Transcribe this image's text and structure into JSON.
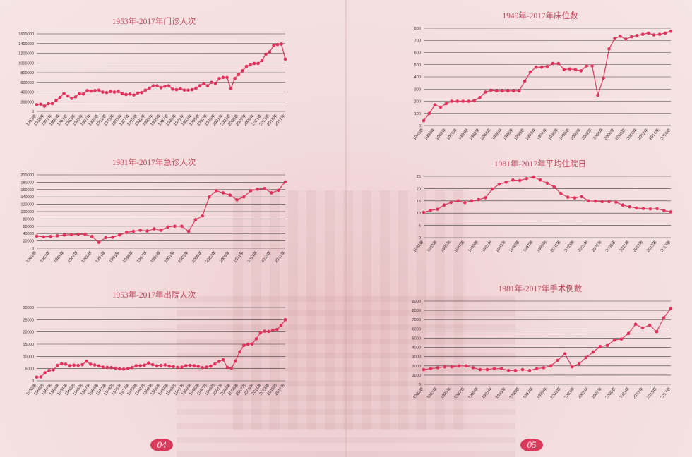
{
  "pages": {
    "left": "04",
    "right": "05"
  },
  "chart_data": [
    {
      "id": "outpatient",
      "type": "line",
      "title": "1953年-2017年门诊人次",
      "ylim": [
        0,
        1600000
      ],
      "yticks": [
        0,
        200000,
        400000,
        600000,
        800000,
        1000000,
        1200000,
        1400000,
        1600000
      ],
      "x_labels": [
        "1953年",
        "1955年",
        "1957年",
        "1959年",
        "1961年",
        "1963年",
        "1965年",
        "1967年",
        "1969年",
        "1971年",
        "1973年",
        "1975年",
        "1977年",
        "1979年",
        "1981年",
        "1983年",
        "1985年",
        "1987年",
        "1989年",
        "1991年",
        "1993年",
        "1995年",
        "1997年",
        "1999年",
        "2001年",
        "2003年",
        "2005年",
        "2007年",
        "2009年",
        "2011年",
        "2013年",
        "2015年",
        "2017年"
      ],
      "x_start": 1953,
      "x_end": 2017,
      "series": [
        {
          "values": [
            140000,
            150000,
            110000,
            160000,
            160000,
            230000,
            290000,
            370000,
            320000,
            270000,
            300000,
            370000,
            360000,
            430000,
            420000,
            430000,
            440000,
            400000,
            390000,
            410000,
            400000,
            410000,
            370000,
            350000,
            360000,
            340000,
            380000,
            390000,
            440000,
            480000,
            530000,
            530000,
            490000,
            520000,
            530000,
            460000,
            450000,
            470000,
            440000,
            440000,
            450000,
            480000,
            530000,
            580000,
            530000,
            600000,
            580000,
            680000,
            700000,
            700000,
            470000,
            680000,
            760000,
            840000,
            930000,
            960000,
            990000,
            990000,
            1050000,
            1180000,
            1230000,
            1360000,
            1380000,
            1390000,
            1080000
          ]
        }
      ]
    },
    {
      "id": "emergency",
      "type": "line",
      "title": "1981年-2017年急诊人次",
      "ylim": [
        0,
        200000
      ],
      "yticks": [
        0,
        20000,
        40000,
        60000,
        80000,
        100000,
        120000,
        140000,
        160000,
        180000,
        200000
      ],
      "x_labels": [
        "1981年",
        "1983年",
        "1985年",
        "1987年",
        "1989年",
        "1991年",
        "1993年",
        "1995年",
        "1997年",
        "1999年",
        "2001年",
        "2003年",
        "2005年",
        "2007年",
        "2009年",
        "2011年",
        "2013年",
        "2015年",
        "2017年"
      ],
      "x_start": 1981,
      "x_end": 2017,
      "series": [
        {
          "values": [
            33000,
            31000,
            32000,
            34000,
            36000,
            37000,
            38000,
            38000,
            32000,
            16000,
            29000,
            30000,
            36000,
            43000,
            46000,
            49000,
            47000,
            53000,
            49000,
            58000,
            60000,
            60000,
            46000,
            78000,
            88000,
            140000,
            157000,
            151000,
            145000,
            132000,
            140000,
            157000,
            161000,
            163000,
            151000,
            158000,
            181000
          ]
        }
      ]
    },
    {
      "id": "discharge",
      "type": "line",
      "title": "1953年-2017年出院人次",
      "ylim": [
        0,
        30000
      ],
      "yticks": [
        0,
        5000,
        10000,
        15000,
        20000,
        25000,
        30000
      ],
      "x_labels": [
        "1953年",
        "1955年",
        "1957年",
        "1959年",
        "1961年",
        "1963年",
        "1965年",
        "1967年",
        "1969年",
        "1971年",
        "1973年",
        "1975年",
        "1977年",
        "1979年",
        "1981年",
        "1983年",
        "1985年",
        "1987年",
        "1989年",
        "1991年",
        "1993年",
        "1995年",
        "1997年",
        "1999年",
        "2001年",
        "2003年",
        "2005年",
        "2007年",
        "2009年",
        "2011年",
        "2013年",
        "2015年",
        "2017年"
      ],
      "x_start": 1953,
      "x_end": 2017,
      "series": [
        {
          "values": [
            1500,
            1600,
            3300,
            4300,
            4500,
            6300,
            7000,
            6800,
            6200,
            6400,
            6300,
            6600,
            8000,
            6800,
            6500,
            6100,
            5600,
            5500,
            5400,
            5200,
            4900,
            4800,
            5100,
            5400,
            6200,
            6200,
            6400,
            7300,
            6600,
            6100,
            6300,
            6500,
            6000,
            5800,
            5500,
            5600,
            6200,
            6300,
            6200,
            5900,
            5400,
            5600,
            6000,
            6900,
            7900,
            8600,
            5500,
            5200,
            8100,
            11900,
            14500,
            15000,
            15100,
            17200,
            19600,
            20300,
            20200,
            20700,
            21000,
            22700,
            25000
          ]
        }
      ]
    },
    {
      "id": "beds",
      "type": "line",
      "title": "1949年-2017年床位数",
      "ylim": [
        0,
        800
      ],
      "yticks": [
        0,
        100,
        200,
        300,
        400,
        500,
        600,
        700,
        800
      ],
      "x_labels": [
        "1949年",
        "1960年",
        "1968年",
        "1978年",
        "1980年",
        "1982年",
        "1984年",
        "1986年",
        "1988年",
        "1990年",
        "1992年",
        "1994年",
        "1996年",
        "1998年",
        "2000年",
        "2002年",
        "2004年",
        "2006年",
        "2008年",
        "2010年",
        "2012年",
        "2014年",
        "2016年"
      ],
      "x_start": 1949,
      "x_end": 2017,
      "series": [
        {
          "values": [
            40,
            100,
            170,
            150,
            180,
            200,
            200,
            200,
            200,
            205,
            230,
            275,
            290,
            285,
            285,
            285,
            285,
            285,
            365,
            440,
            480,
            480,
            485,
            510,
            510,
            460,
            465,
            460,
            450,
            490,
            490,
            250,
            390,
            630,
            715,
            735,
            710,
            730,
            740,
            750,
            760,
            745,
            750,
            760,
            775
          ]
        }
      ]
    },
    {
      "id": "avg_stay",
      "type": "line",
      "title": "1981年-2017年平均住院日",
      "ylim": [
        0,
        25
      ],
      "yticks": [
        0,
        5,
        10,
        15,
        20,
        25
      ],
      "x_labels": [
        "1981年",
        "1983年",
        "1985年",
        "1987年",
        "1989年",
        "1991年",
        "1993年",
        "1995年",
        "1997年",
        "1999年",
        "2001年",
        "2003年",
        "2005年",
        "2007年",
        "2009年",
        "2011年",
        "2013年",
        "2015年",
        "2017年"
      ],
      "x_start": 1981,
      "x_end": 2017,
      "series": [
        {
          "values": [
            10.3,
            11.1,
            11.6,
            13.3,
            14.4,
            15.0,
            14.3,
            15.0,
            15.5,
            16.3,
            19.8,
            21.8,
            22.6,
            23.5,
            23.3,
            24.1,
            24.7,
            23.5,
            22.2,
            20.7,
            18.0,
            16.5,
            16.2,
            16.7,
            15.0,
            14.9,
            14.7,
            14.7,
            14.5,
            13.3,
            12.6,
            12.1,
            11.9,
            11.7,
            11.8,
            11.1,
            10.5
          ]
        }
      ]
    },
    {
      "id": "surgery",
      "type": "line",
      "title": "1981年-2017年手术例数",
      "ylim": [
        0,
        9000
      ],
      "yticks": [
        0,
        1000,
        2000,
        3000,
        4000,
        5000,
        6000,
        7000,
        8000,
        9000
      ],
      "x_labels": [
        "1981年",
        "1983年",
        "1985年",
        "1987年",
        "1989年",
        "1991年",
        "1993年",
        "1995年",
        "1997年",
        "1999年",
        "2001年",
        "2003年",
        "2005年",
        "2007年",
        "2009年",
        "2011年",
        "2013年",
        "2015年",
        "2017年"
      ],
      "x_start": 1981,
      "x_end": 2017,
      "series": [
        {
          "values": [
            1600,
            1700,
            1800,
            1900,
            1900,
            2000,
            2000,
            1800,
            1600,
            1600,
            1700,
            1700,
            1500,
            1500,
            1600,
            1500,
            1700,
            1800,
            2000,
            2600,
            3300,
            1900,
            2200,
            2900,
            3500,
            4100,
            4200,
            4800,
            4900,
            5500,
            6500,
            6100,
            6400,
            5700,
            7200,
            8200
          ]
        }
      ]
    }
  ]
}
